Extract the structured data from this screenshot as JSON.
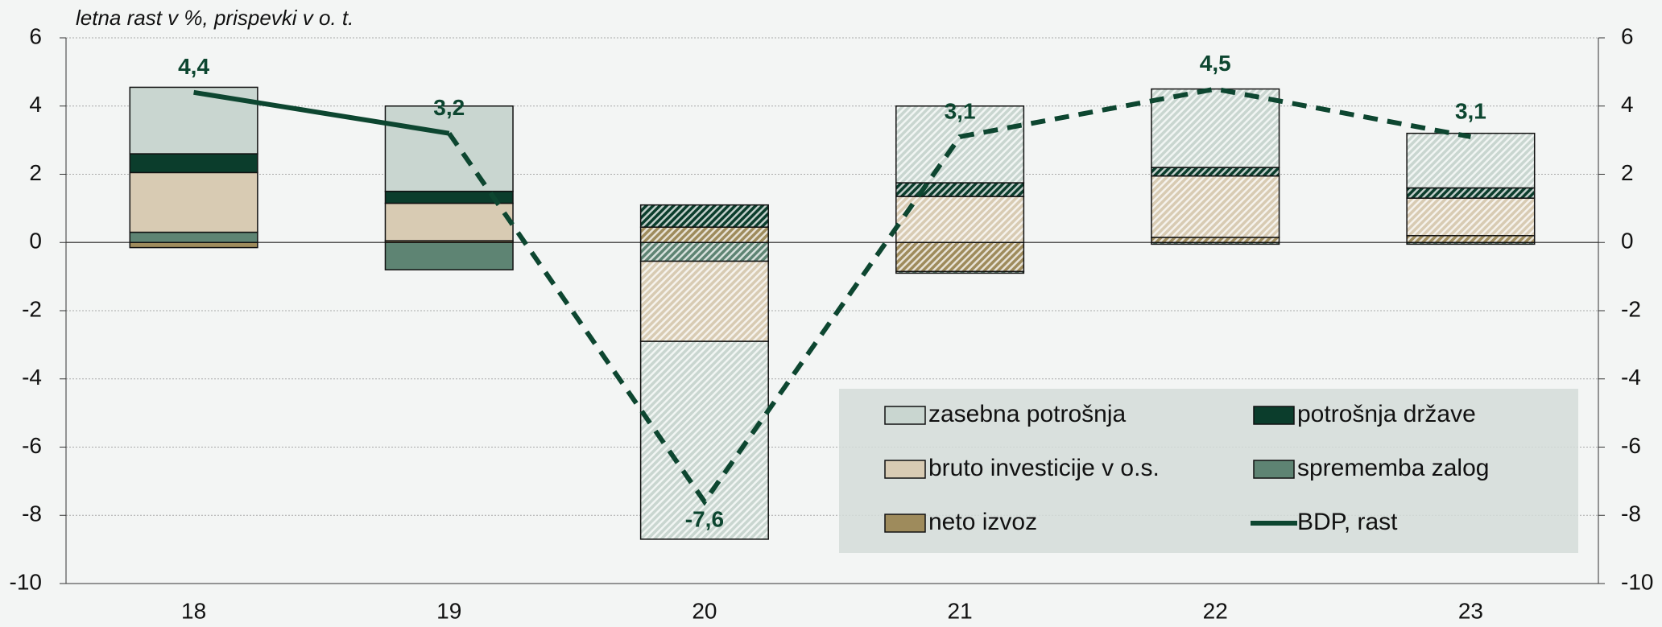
{
  "chart_data": {
    "type": "stacked_bar_line",
    "subtitle": "letna rast v %, prispevki v o. t.",
    "categories": [
      "18",
      "19",
      "20",
      "21",
      "22",
      "23"
    ],
    "series": [
      {
        "name": "zasebna potrošnja",
        "color": "#c9d6d0",
        "values": [
          1.95,
          2.5,
          -5.8,
          2.25,
          2.3,
          1.6
        ]
      },
      {
        "name": "potrošnja države",
        "color": "#0b3d2c",
        "values": [
          0.55,
          0.35,
          0.65,
          0.4,
          0.25,
          0.3
        ]
      },
      {
        "name": "bruto investicije v o.s.",
        "color": "#d8cbb3",
        "values": [
          1.75,
          1.1,
          -2.35,
          1.35,
          1.8,
          1.1
        ]
      },
      {
        "name": "sprememba zalog",
        "color": "#5e8473",
        "values": [
          0.3,
          -0.8,
          -0.55,
          -0.05,
          -0.05,
          -0.05
        ]
      },
      {
        "name": "neto izvoz",
        "color": "#9e8b5c",
        "values": [
          -0.15,
          0.05,
          0.45,
          -0.85,
          0.15,
          0.2
        ]
      }
    ],
    "line": {
      "name": "BDP, rast",
      "color": "#0d4630",
      "values": [
        4.4,
        3.2,
        -7.6,
        3.1,
        4.5,
        3.1
      ],
      "value_labels": [
        "4,4",
        "3,2",
        "-7,6",
        "3,1",
        "4,5",
        "3,1"
      ]
    },
    "hatch_from_index": 2,
    "dash_from_index": 1,
    "ylim": [
      -10,
      6
    ],
    "yticks": [
      -10,
      -8,
      -6,
      -4,
      -2,
      0,
      2,
      4,
      6
    ],
    "y2lim": [
      -10,
      6
    ],
    "y2ticks": [
      -10,
      -8,
      -6,
      -4,
      -2,
      0,
      2,
      4,
      6
    ],
    "grid": true
  }
}
